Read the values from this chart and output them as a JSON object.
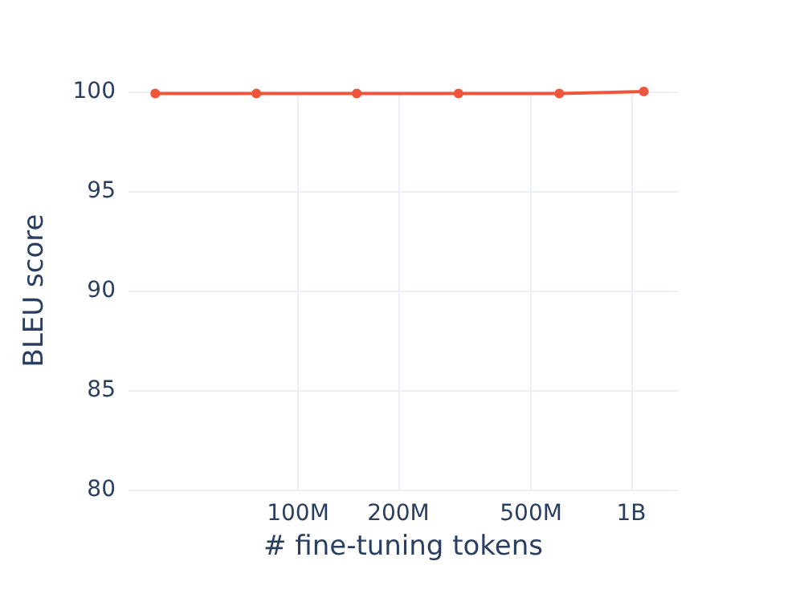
{
  "chart_data": {
    "type": "line",
    "xlabel": "# fine-tuning tokens",
    "ylabel": "BLEU score",
    "x": [
      37300000,
      75000000,
      150000000,
      303000000,
      608000000,
      1090000000
    ],
    "series": [
      {
        "color": "#ef553b",
        "values": [
          99.9,
          99.9,
          99.9,
          99.9,
          99.9,
          100
        ]
      }
    ],
    "log": "x",
    "xlim": [
      31000000,
      1380000000
    ],
    "xticks": [
      {
        "value": 100000000,
        "label": "100M"
      },
      {
        "value": 200000000,
        "label": "200M"
      },
      {
        "value": 500000000,
        "label": "500M"
      },
      {
        "value": 1000000000,
        "label": "1B"
      }
    ],
    "ylim": [
      80,
      100
    ],
    "yticks": [
      80,
      85,
      90,
      95,
      100
    ],
    "grid": true,
    "marker": "circle",
    "line_style": "solid"
  }
}
